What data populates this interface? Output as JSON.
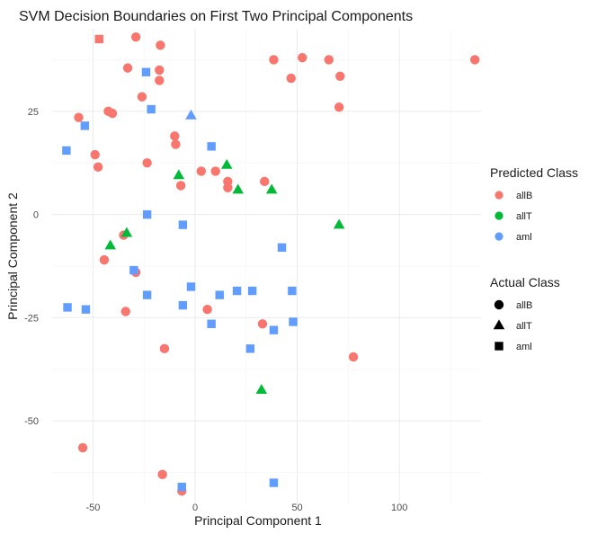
{
  "chart_data": {
    "type": "scatter",
    "title": "SVM Decision Boundaries on First Two Principal Components",
    "xlabel": "Principal Component 1",
    "ylabel": "Principal Component 2",
    "xlim": [
      -70,
      140
    ],
    "ylim": [
      -70,
      45
    ],
    "x_ticks": [
      -50,
      0,
      50,
      100
    ],
    "y_ticks": [
      -50,
      -25,
      0,
      25
    ],
    "grid": true,
    "legend_position": "right",
    "predicted_legend": {
      "title": "Predicted Class",
      "entries": [
        {
          "label": "allB",
          "color": "#F8766D"
        },
        {
          "label": "allT",
          "color": "#00BA38"
        },
        {
          "label": "aml",
          "color": "#619CFF"
        }
      ]
    },
    "actual_legend": {
      "title": "Actual Class",
      "entries": [
        {
          "label": "allB",
          "shape": "circle"
        },
        {
          "label": "allT",
          "shape": "triangle"
        },
        {
          "label": "aml",
          "shape": "square"
        }
      ]
    },
    "points": [
      {
        "x": -47,
        "y": 42.5,
        "predicted": "allB",
        "actual": "aml"
      },
      {
        "x": -29,
        "y": 43,
        "predicted": "allB",
        "actual": "allB"
      },
      {
        "x": -17,
        "y": 41,
        "predicted": "allB",
        "actual": "allB"
      },
      {
        "x": -33,
        "y": 35.5,
        "predicted": "allB",
        "actual": "allB"
      },
      {
        "x": -17.5,
        "y": 35,
        "predicted": "allB",
        "actual": "allB"
      },
      {
        "x": -17.5,
        "y": 32.5,
        "predicted": "allB",
        "actual": "allB"
      },
      {
        "x": -26,
        "y": 28.5,
        "predicted": "allB",
        "actual": "allB"
      },
      {
        "x": -42.5,
        "y": 25,
        "predicted": "allB",
        "actual": "allB"
      },
      {
        "x": -40.5,
        "y": 24.5,
        "predicted": "allB",
        "actual": "allB"
      },
      {
        "x": -57,
        "y": 23.5,
        "predicted": "allB",
        "actual": "allB"
      },
      {
        "x": -10,
        "y": 19,
        "predicted": "allB",
        "actual": "allB"
      },
      {
        "x": -9.5,
        "y": 17,
        "predicted": "allB",
        "actual": "allB"
      },
      {
        "x": -49,
        "y": 14.5,
        "predicted": "allB",
        "actual": "allB"
      },
      {
        "x": -47.5,
        "y": 11.5,
        "predicted": "allB",
        "actual": "allB"
      },
      {
        "x": -23.5,
        "y": 12.5,
        "predicted": "allB",
        "actual": "allB"
      },
      {
        "x": 3,
        "y": 10.5,
        "predicted": "allB",
        "actual": "allB"
      },
      {
        "x": 10,
        "y": 10.5,
        "predicted": "allB",
        "actual": "allB"
      },
      {
        "x": 16,
        "y": 8,
        "predicted": "allB",
        "actual": "allB"
      },
      {
        "x": 16,
        "y": 6.5,
        "predicted": "allB",
        "actual": "allB"
      },
      {
        "x": 34,
        "y": 8,
        "predicted": "allB",
        "actual": "allB"
      },
      {
        "x": -7,
        "y": 7,
        "predicted": "allB",
        "actual": "allB"
      },
      {
        "x": 38.5,
        "y": 37.5,
        "predicted": "allB",
        "actual": "allB"
      },
      {
        "x": 52.5,
        "y": 38,
        "predicted": "allB",
        "actual": "allB"
      },
      {
        "x": 65.5,
        "y": 37.5,
        "predicted": "allB",
        "actual": "allB"
      },
      {
        "x": 47,
        "y": 33,
        "predicted": "allB",
        "actual": "allB"
      },
      {
        "x": 71,
        "y": 33.5,
        "predicted": "allB",
        "actual": "allB"
      },
      {
        "x": 70.5,
        "y": 26,
        "predicted": "allB",
        "actual": "allB"
      },
      {
        "x": 137,
        "y": 37.5,
        "predicted": "allB",
        "actual": "allB"
      },
      {
        "x": -44.5,
        "y": -11,
        "predicted": "allB",
        "actual": "allB"
      },
      {
        "x": -35,
        "y": -5,
        "predicted": "allB",
        "actual": "allB"
      },
      {
        "x": -29,
        "y": -14,
        "predicted": "allB",
        "actual": "allB"
      },
      {
        "x": -34,
        "y": -23.5,
        "predicted": "allB",
        "actual": "allB"
      },
      {
        "x": 6,
        "y": -23,
        "predicted": "allB",
        "actual": "allB"
      },
      {
        "x": 33,
        "y": -26.5,
        "predicted": "allB",
        "actual": "allB"
      },
      {
        "x": -15,
        "y": -32.5,
        "predicted": "allB",
        "actual": "allB"
      },
      {
        "x": 77.5,
        "y": -34.5,
        "predicted": "allB",
        "actual": "allB"
      },
      {
        "x": -55,
        "y": -56.5,
        "predicted": "allB",
        "actual": "allB"
      },
      {
        "x": -16,
        "y": -63,
        "predicted": "allB",
        "actual": "allB"
      },
      {
        "x": -6.5,
        "y": -67,
        "predicted": "allB",
        "actual": "allB"
      },
      {
        "x": -24,
        "y": 34.5,
        "predicted": "aml",
        "actual": "aml"
      },
      {
        "x": -21.5,
        "y": 25.5,
        "predicted": "aml",
        "actual": "aml"
      },
      {
        "x": -2,
        "y": 24,
        "predicted": "aml",
        "actual": "allT"
      },
      {
        "x": -54,
        "y": 21.5,
        "predicted": "aml",
        "actual": "aml"
      },
      {
        "x": -63,
        "y": 15.5,
        "predicted": "aml",
        "actual": "aml"
      },
      {
        "x": 8,
        "y": 16.5,
        "predicted": "aml",
        "actual": "aml"
      },
      {
        "x": -23.5,
        "y": 0,
        "predicted": "aml",
        "actual": "aml"
      },
      {
        "x": -6,
        "y": -2.5,
        "predicted": "aml",
        "actual": "aml"
      },
      {
        "x": 42.5,
        "y": -8,
        "predicted": "aml",
        "actual": "aml"
      },
      {
        "x": -30,
        "y": -13.5,
        "predicted": "aml",
        "actual": "aml"
      },
      {
        "x": -2,
        "y": -17.5,
        "predicted": "aml",
        "actual": "aml"
      },
      {
        "x": -23.5,
        "y": -19.5,
        "predicted": "aml",
        "actual": "aml"
      },
      {
        "x": 12,
        "y": -19.5,
        "predicted": "aml",
        "actual": "aml"
      },
      {
        "x": 20.5,
        "y": -18.5,
        "predicted": "aml",
        "actual": "aml"
      },
      {
        "x": 28,
        "y": -18.5,
        "predicted": "aml",
        "actual": "aml"
      },
      {
        "x": 47.5,
        "y": -18.5,
        "predicted": "aml",
        "actual": "aml"
      },
      {
        "x": -62.5,
        "y": -22.5,
        "predicted": "aml",
        "actual": "aml"
      },
      {
        "x": -53.5,
        "y": -23,
        "predicted": "aml",
        "actual": "aml"
      },
      {
        "x": -6,
        "y": -22,
        "predicted": "aml",
        "actual": "aml"
      },
      {
        "x": 8,
        "y": -26.5,
        "predicted": "aml",
        "actual": "aml"
      },
      {
        "x": 48,
        "y": -26,
        "predicted": "aml",
        "actual": "aml"
      },
      {
        "x": 38.5,
        "y": -28,
        "predicted": "aml",
        "actual": "aml"
      },
      {
        "x": 27,
        "y": -32.5,
        "predicted": "aml",
        "actual": "aml"
      },
      {
        "x": 38.5,
        "y": -65,
        "predicted": "aml",
        "actual": "aml"
      },
      {
        "x": -6.5,
        "y": -66,
        "predicted": "aml",
        "actual": "aml"
      },
      {
        "x": 15.5,
        "y": 12,
        "predicted": "allT",
        "actual": "allT"
      },
      {
        "x": -8,
        "y": 9.5,
        "predicted": "allT",
        "actual": "allT"
      },
      {
        "x": 21,
        "y": 6,
        "predicted": "allT",
        "actual": "allT"
      },
      {
        "x": 37.5,
        "y": 6,
        "predicted": "allT",
        "actual": "allT"
      },
      {
        "x": 70.5,
        "y": -2.5,
        "predicted": "allT",
        "actual": "allT"
      },
      {
        "x": -33.5,
        "y": -4.5,
        "predicted": "allT",
        "actual": "allT"
      },
      {
        "x": -41.5,
        "y": -7.5,
        "predicted": "allT",
        "actual": "allT"
      },
      {
        "x": 32.5,
        "y": -42.5,
        "predicted": "allT",
        "actual": "allT"
      }
    ]
  }
}
